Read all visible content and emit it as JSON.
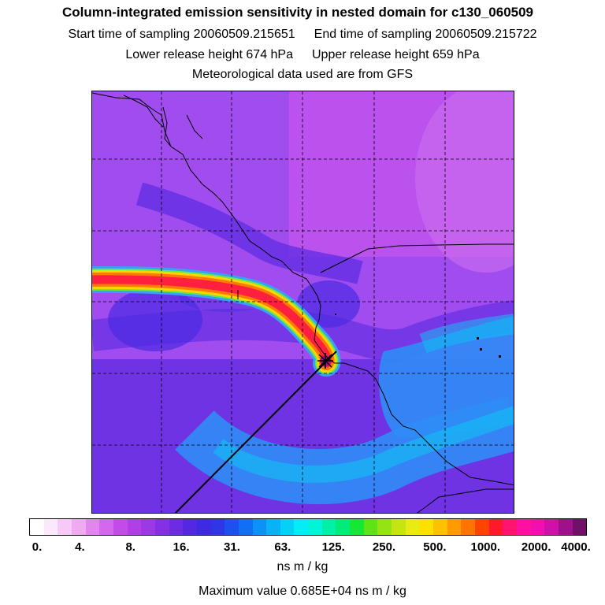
{
  "header": {
    "title": "Column-integrated emission sensitivity in nested domain for c130_060509",
    "start_label": "Start time of sampling 20060509.215651",
    "end_label": "End time of sampling 20060509.215722",
    "lower_label": "Lower release height  674 hPa",
    "upper_label": "Upper release height  659 hPa",
    "met_label": "Meteorological data used are from GFS"
  },
  "colorbar": {
    "ticks": [
      "0.",
      "4.",
      "8.",
      "16.",
      "31.",
      "63.",
      "125.",
      "250.",
      "500.",
      "1000.",
      "2000.",
      "4000."
    ],
    "units": "ns m / kg",
    "colors": [
      "#ffffff",
      "#fce8fc",
      "#f7c9f7",
      "#efaaf0",
      "#e385ee",
      "#d566ee",
      "#c54be8",
      "#b13fe6",
      "#9d38e7",
      "#8630e6",
      "#6e2be4",
      "#5428e3",
      "#3e2ae3",
      "#2f36e8",
      "#1c50f0",
      "#1070f4",
      "#0a92f6",
      "#08b2f7",
      "#06d0f8",
      "#04ecf8",
      "#00f4d8",
      "#00f0a8",
      "#00ec78",
      "#14e834",
      "#5ee414",
      "#94e414",
      "#c4e414",
      "#eaea14",
      "#ffe000",
      "#ffc000",
      "#ff9a00",
      "#ff7400",
      "#ff4400",
      "#ff1a2a",
      "#ff1470",
      "#ff10a0",
      "#f010b0",
      "#d010a8",
      "#a0108c",
      "#701068"
    ]
  },
  "footer": {
    "max_value": "Maximum value  0.685E+04 ns m / kg"
  },
  "map": {
    "background": "#a54cf0",
    "plume_peak": "#ff2040",
    "low_band": "#2f8cf5"
  }
}
